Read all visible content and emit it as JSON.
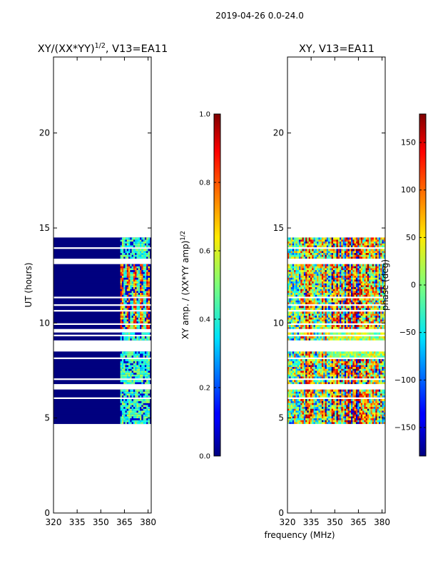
{
  "suptitle": "2019-04-26 0.0-24.0",
  "chart_data": [
    {
      "type": "heatmap",
      "title_main": "XY/(XX*YY)",
      "title_sup": "1/2",
      "title_rest": ", V13=EA11",
      "xlabel": "",
      "ylabel": "UT (hours)",
      "xlim": [
        320,
        382
      ],
      "ylim": [
        0,
        24
      ],
      "xticks": [
        320,
        335,
        350,
        365,
        380
      ],
      "yticks": [
        0,
        5,
        10,
        15,
        20
      ],
      "data_time_range": [
        4.7,
        14.4
      ],
      "bright_freq_range": [
        362,
        380
      ],
      "colorbar": {
        "label_main": "XY amp. / (XX*YY amp)",
        "label_sup": "1/2",
        "range": [
          0.0,
          1.0
        ],
        "ticks": [
          "0.0",
          "0.2",
          "0.4",
          "0.6",
          "0.8",
          "1.0"
        ],
        "colormap": "jet"
      }
    },
    {
      "type": "heatmap",
      "title": "XY, V13=EA11",
      "xlabel": "frequency (MHz)",
      "ylabel": "",
      "xlim": [
        320,
        382
      ],
      "ylim": [
        0,
        24
      ],
      "xticks": [
        320,
        335,
        350,
        365,
        380
      ],
      "yticks": [
        0,
        5,
        10,
        15,
        20
      ],
      "data_time_range": [
        4.7,
        14.4
      ],
      "colorbar": {
        "label": "phase (deg)",
        "range": [
          -180,
          180
        ],
        "ticks": [
          "−150",
          "−100",
          "−50",
          "0",
          "50",
          "100",
          "150"
        ],
        "tick_values": [
          -150,
          -100,
          -50,
          0,
          50,
          100,
          150
        ],
        "colormap": "jet"
      }
    }
  ]
}
